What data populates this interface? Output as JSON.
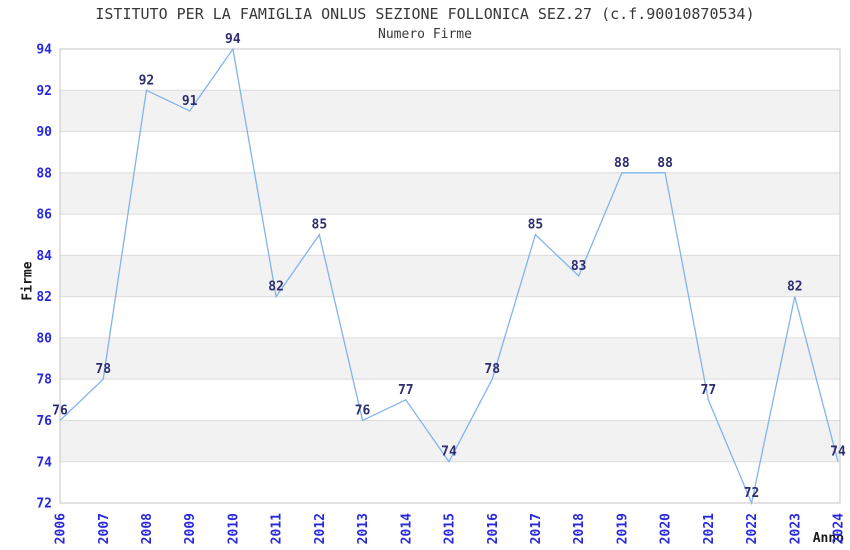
{
  "chart_data": {
    "type": "line",
    "title": "ISTITUTO PER LA FAMIGLIA ONLUS SEZIONE FOLLONICA SEZ.27 (c.f.90010870534)",
    "subtitle": "Numero Firme",
    "xlabel": "Anno",
    "ylabel": "Firme",
    "categories": [
      "2006",
      "2007",
      "2008",
      "2009",
      "2010",
      "2011",
      "2012",
      "2013",
      "2014",
      "2015",
      "2016",
      "2017",
      "2018",
      "2019",
      "2020",
      "2021",
      "2022",
      "2023",
      "2024"
    ],
    "values": [
      76,
      78,
      92,
      91,
      94,
      82,
      85,
      76,
      77,
      74,
      78,
      85,
      83,
      88,
      88,
      77,
      72,
      82,
      74
    ],
    "ylim": [
      72,
      94
    ],
    "yticks": [
      72,
      74,
      76,
      78,
      80,
      82,
      84,
      86,
      88,
      90,
      92,
      94
    ],
    "point_labels_shown": true,
    "legend": "none",
    "grid": "horizontal alternating bands every 2 units",
    "colors": {
      "line": "#82b4ec",
      "tick_label": "#2828dc",
      "data_label": "#2d2d70",
      "band_fill": "#f2f2f2",
      "grid_line": "#dcdcdc",
      "plot_border": "#c6c6c6",
      "title_text": "#383838",
      "axis_name_text": "#1a1a1a",
      "background": "#ffffff"
    }
  }
}
